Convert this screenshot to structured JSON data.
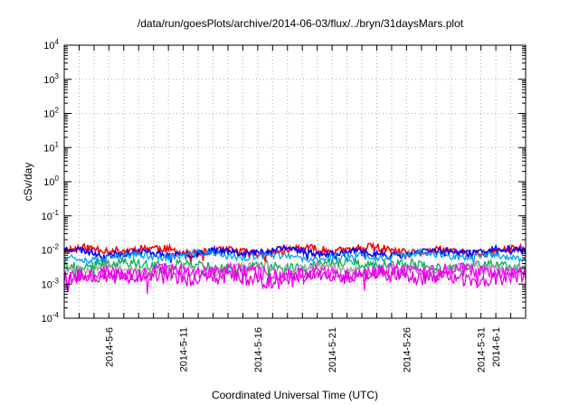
{
  "chart_data": {
    "type": "line",
    "title": "/data/run/goesPlots/archive/2014-06-03/flux/../bryn/31daysMars.plot",
    "xlabel": "Coordinated Universal Time (UTC)",
    "ylabel": "cSv/day",
    "yscale": "log",
    "ylim": [
      0.0001,
      10000
    ],
    "xlim": [
      "2014-05-03",
      "2014-06-03"
    ],
    "grid": true,
    "y_ticks": [
      {
        "value": 0.0001,
        "base": "10",
        "exp": "-4"
      },
      {
        "value": 0.001,
        "base": "10",
        "exp": "-3"
      },
      {
        "value": 0.01,
        "base": "10",
        "exp": "-2"
      },
      {
        "value": 0.1,
        "base": "10",
        "exp": "-1"
      },
      {
        "value": 1,
        "base": "10",
        "exp": "0"
      },
      {
        "value": 10,
        "base": "10",
        "exp": "1"
      },
      {
        "value": 100,
        "base": "10",
        "exp": "2"
      },
      {
        "value": 1000,
        "base": "10",
        "exp": "3"
      },
      {
        "value": 10000,
        "base": "10",
        "exp": "4"
      }
    ],
    "x_ticks": [
      "2014-5-6",
      "2014-5-11",
      "2014-5-16",
      "2014-5-21",
      "2014-5-26",
      "2014-5-31",
      "2014-6-1"
    ],
    "series": [
      {
        "color": "#ff0000",
        "level": 0.0095,
        "spread": 0.12,
        "seed": 11
      },
      {
        "color": "#0000ff",
        "level": 0.0085,
        "spread": 0.1,
        "seed": 23
      },
      {
        "color": "#00a0ff",
        "level": 0.0065,
        "spread": 0.1,
        "seed": 37
      },
      {
        "color": "#00b050",
        "level": 0.0035,
        "spread": 0.14,
        "seed": 41
      },
      {
        "color": "#a0a0a0",
        "level": 0.0028,
        "spread": 0.14,
        "seed": 53
      },
      {
        "color": "#ff00ff",
        "level": 0.0022,
        "spread": 0.2,
        "seed": 67
      },
      {
        "color": "#e000e0",
        "level": 0.0016,
        "spread": 0.22,
        "seed": 79
      }
    ]
  }
}
